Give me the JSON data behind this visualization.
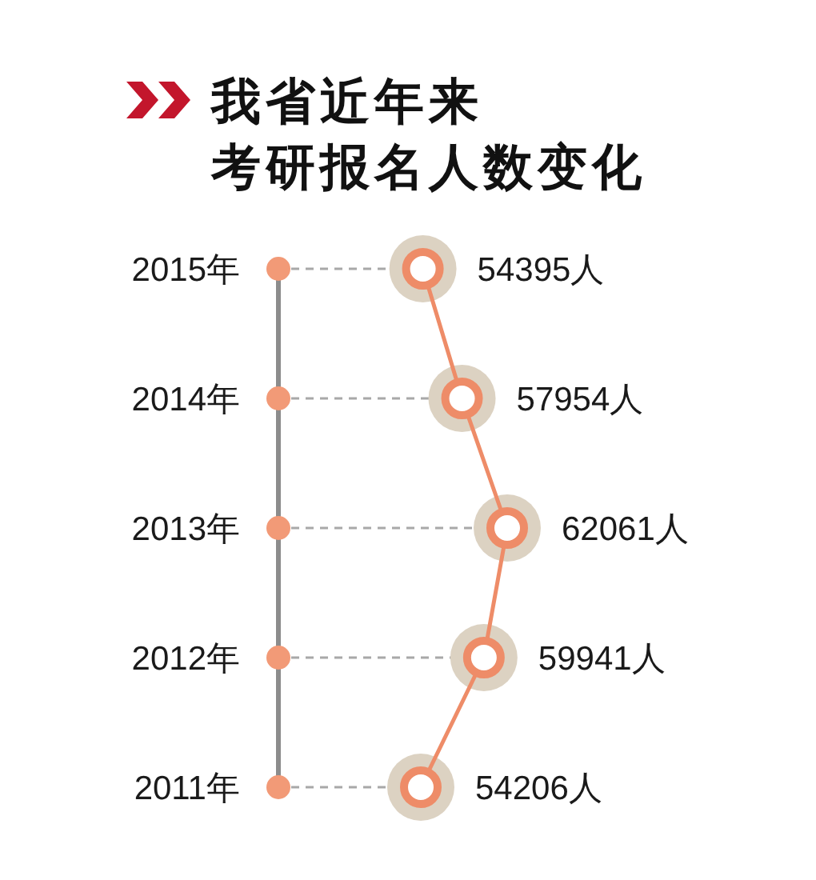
{
  "chart_data": {
    "type": "line",
    "orientation": "horizontal",
    "title": "我省近年来",
    "subtitle": "考研报名人数变化",
    "categories": [
      "2015年",
      "2014年",
      "2013年",
      "2012年",
      "2011年"
    ],
    "values": [
      54395,
      57954,
      62061,
      59941,
      54206
    ],
    "value_labels": [
      "54395人",
      "57954人",
      "62061人",
      "59941人",
      "54206人"
    ],
    "color": "#ee8c68",
    "marker": "circle",
    "tick_labels": "y",
    "grid": "y"
  }
}
